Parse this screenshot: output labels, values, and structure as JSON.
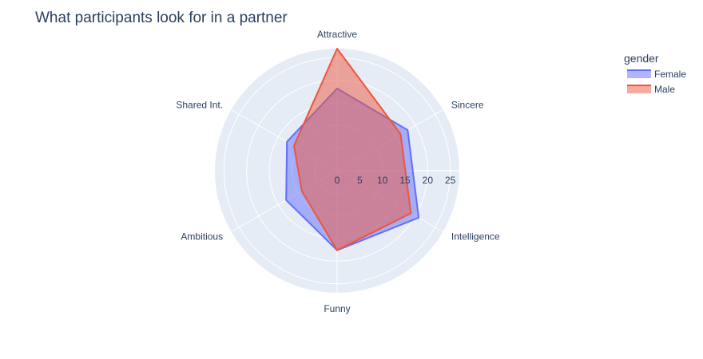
{
  "title": "What participants look for in a partner",
  "chart_data": {
    "type": "radar",
    "categories": [
      "Attractive",
      "Sincere",
      "Intelligence",
      "Funny",
      "Ambitious",
      "Shared Int."
    ],
    "radial_range": [
      0,
      27
    ],
    "radial_ticks": [
      "0",
      "5",
      "10",
      "15",
      "20",
      "25"
    ],
    "legend": {
      "title": "gender",
      "placement": "top-right"
    },
    "series": [
      {
        "name": "Female",
        "values": [
          18.2,
          18.0,
          20.8,
          17.6,
          13.0,
          12.8
        ],
        "color": "#636efa"
      },
      {
        "name": "Male",
        "values": [
          27.0,
          16.2,
          18.8,
          17.6,
          9.0,
          11.0
        ],
        "color": "#ef553b"
      }
    ]
  }
}
